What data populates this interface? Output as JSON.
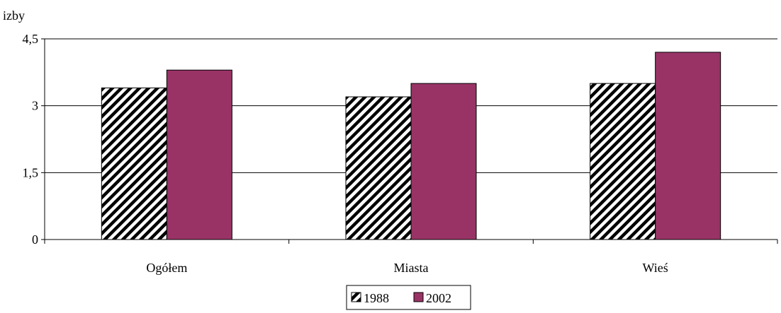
{
  "chart_data": {
    "type": "bar",
    "ylabel": "izby",
    "categories": [
      "Ogółem",
      "Miasta",
      "Wieś"
    ],
    "series": [
      {
        "name": "1988",
        "values": [
          3.4,
          3.2,
          3.5
        ],
        "color": "#ffffff",
        "pattern": "diagonal-hatch"
      },
      {
        "name": "2002",
        "values": [
          3.8,
          3.5,
          4.2
        ],
        "color": "#993366"
      }
    ],
    "ylim": [
      0,
      4.5
    ],
    "yticks": [
      0,
      1.5,
      3,
      4.5
    ],
    "ytick_labels": [
      "0",
      "1,5",
      "3",
      "4,5"
    ],
    "grid": true,
    "legend_position": "bottom-center"
  }
}
